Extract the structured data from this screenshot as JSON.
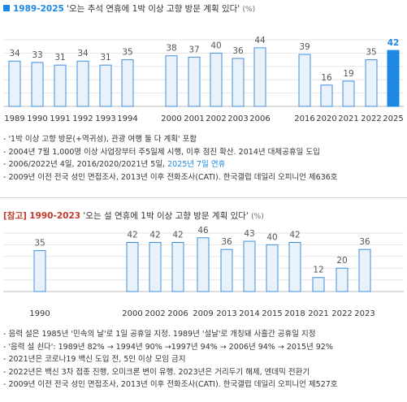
{
  "section1": {
    "range": "1989-2025",
    "quote": "'오는 추석 연휴에 1박 이상 고향 방문 계획 있다'",
    "unit": "(%)"
  },
  "section2": {
    "tag": "[참고]",
    "range": "1990-2023",
    "quote": "'오는 설 연휴에 1박 이상 고향 방문 계획 있다'",
    "unit": "(%)"
  },
  "colors": {
    "bar_fill": "#e9f2fb",
    "bar_stroke": "#3f8fdc",
    "highlight": "#1e88e5",
    "value_text": "#555555",
    "axis": "#bbbbbb"
  },
  "chart_data": [
    {
      "type": "bar",
      "categories": [
        "1989",
        "1990",
        "1991",
        "1992",
        "1993",
        "1994",
        "2000",
        "2001",
        "2002",
        "2003",
        "2006",
        "2016",
        "2020",
        "2021",
        "2022",
        "2025"
      ],
      "values": [
        34,
        33,
        31,
        34,
        31,
        35,
        38,
        37,
        40,
        36,
        44,
        39,
        16,
        19,
        35,
        42
      ],
      "highlight_category": "2025",
      "ylim": [
        0,
        50
      ],
      "grid": true
    },
    {
      "type": "bar",
      "categories": [
        "1990",
        "2000",
        "2002",
        "2006",
        "2009",
        "2013",
        "2014",
        "2015",
        "2018",
        "2021",
        "2022",
        "2023"
      ],
      "values": [
        35,
        42,
        42,
        42,
        46,
        36,
        43,
        40,
        42,
        12,
        20,
        36
      ],
      "ylim": [
        0,
        50
      ],
      "grid": true
    }
  ],
  "notes1": [
    "- '1박 이상 고향 방문(+역귀성), 관광 여행 둘 다 계획' 포함",
    "- 2004년 7월 1,000명 이상 사업장부터 주5일제 시행, 이후 점진 확산. 2014년 대체공휴일 도입",
    "- 2006/2022년 4일, 2016/2020/2021년 5일, ",
    "- 2009년 이전 전국 성인 면접조사, 2013년 이후 전화조사(CATI). 한국갤럽 데일리 오피니언 제636호"
  ],
  "notes1_highlight": "2025년 7일 연휴",
  "notes2": [
    "- 음력 설은 1985년 '민속의 날'로 1일 공휴일 지정. 1989년 '설날'로 개칭돼 사흘간 공휴일 지정",
    "- '음력 설 쇤다': 1989년 82% → 1994년 90% →1997년 94% → 2006년 94% → 2015년 92%",
    "- 2021년은 코로나19 백신 도입 전, 5인 이상 모임 금지",
    "- 2022년은 백신 3차 접종 진행, 오미크론 변이 유행. 2023년은 거리두기 해제, 엔데믹 전환기",
    "- 2009년 이전 전국 성인 면접조사, 2013년 이후 전화조사(CATI). 한국갤럽 데일리 오피니언 제527호"
  ]
}
